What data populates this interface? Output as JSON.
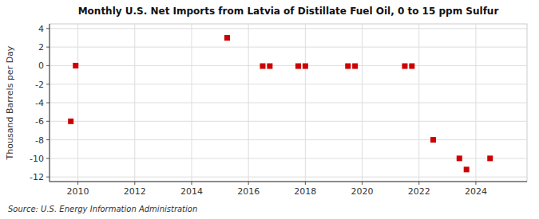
{
  "chart_data": {
    "type": "scatter",
    "title": "Monthly U.S. Net Imports from Latvia of Distillate Fuel Oil, 0 to 15 ppm Sulfur",
    "ylabel": "Thousand Barrels per Day",
    "source": "Source: U.S. Energy Information Administration",
    "x": [
      2009.75,
      2009.92,
      2015.25,
      2016.5,
      2016.75,
      2017.75,
      2018.0,
      2019.5,
      2019.75,
      2021.5,
      2021.75,
      2022.5,
      2023.42,
      2023.67,
      2024.5
    ],
    "values": [
      -6.0,
      0.0,
      3.0,
      -0.05,
      -0.05,
      -0.05,
      -0.05,
      -0.05,
      -0.05,
      -0.05,
      -0.05,
      -8.0,
      -10.0,
      -11.2,
      -10.0
    ],
    "color": "#cc0000",
    "marker": "square",
    "xlim": [
      2009.0,
      2025.8
    ],
    "ylim": [
      -12.5,
      4.5
    ],
    "xticks": [
      2010,
      2012,
      2014,
      2016,
      2018,
      2020,
      2022,
      2024
    ],
    "yticks": [
      -12,
      -10,
      -8,
      -6,
      -4,
      -2,
      0,
      2,
      4
    ],
    "grid": true
  }
}
